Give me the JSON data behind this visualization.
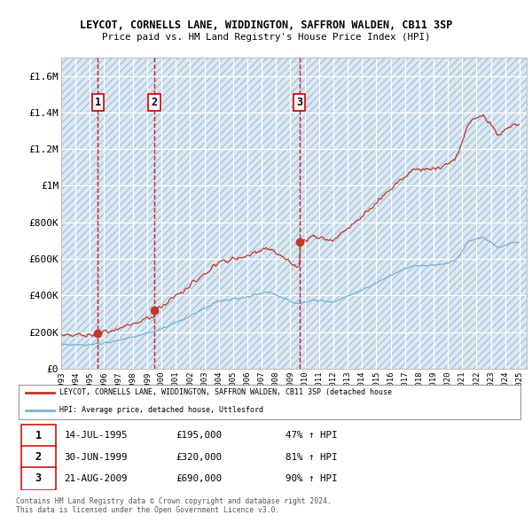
{
  "title": "LEYCOT, CORNELLS LANE, WIDDINGTON, SAFFRON WALDEN, CB11 3SP",
  "subtitle": "Price paid vs. HM Land Registry's House Price Index (HPI)",
  "xlim_start": 1993.0,
  "xlim_end": 2025.5,
  "ylim_min": 0,
  "ylim_max": 1700000,
  "yticks": [
    0,
    200000,
    400000,
    600000,
    800000,
    1000000,
    1200000,
    1400000,
    1600000
  ],
  "ytick_labels": [
    "£0",
    "£200K",
    "£400K",
    "£600K",
    "£800K",
    "£1M",
    "£1.2M",
    "£1.4M",
    "£1.6M"
  ],
  "xticks": [
    1993,
    1994,
    1995,
    1996,
    1997,
    1998,
    1999,
    2000,
    2001,
    2002,
    2003,
    2004,
    2005,
    2006,
    2007,
    2008,
    2009,
    2010,
    2011,
    2012,
    2013,
    2014,
    2015,
    2016,
    2017,
    2018,
    2019,
    2020,
    2021,
    2022,
    2023,
    2024,
    2025
  ],
  "sale_dates": [
    1995.54,
    1999.5,
    2009.64
  ],
  "sale_prices": [
    195000,
    320000,
    690000
  ],
  "sale_labels": [
    "1",
    "2",
    "3"
  ],
  "legend_line1": "LEYCOT, CORNELLS LANE, WIDDINGTON, SAFFRON WALDEN, CB11 3SP (detached house",
  "legend_line2": "HPI: Average price, detached house, Uttlesford",
  "table_data": [
    [
      "1",
      "14-JUL-1995",
      "£195,000",
      "47% ↑ HPI"
    ],
    [
      "2",
      "30-JUN-1999",
      "£320,000",
      "81% ↑ HPI"
    ],
    [
      "3",
      "21-AUG-2009",
      "£690,000",
      "90% ↑ HPI"
    ]
  ],
  "footnote1": "Contains HM Land Registry data © Crown copyright and database right 2024.",
  "footnote2": "This data is licensed under the Open Government Licence v3.0.",
  "hpi_color": "#7ab3d4",
  "price_color": "#c0392b",
  "background_color": "#dce8f2",
  "grid_color": "#ffffff"
}
